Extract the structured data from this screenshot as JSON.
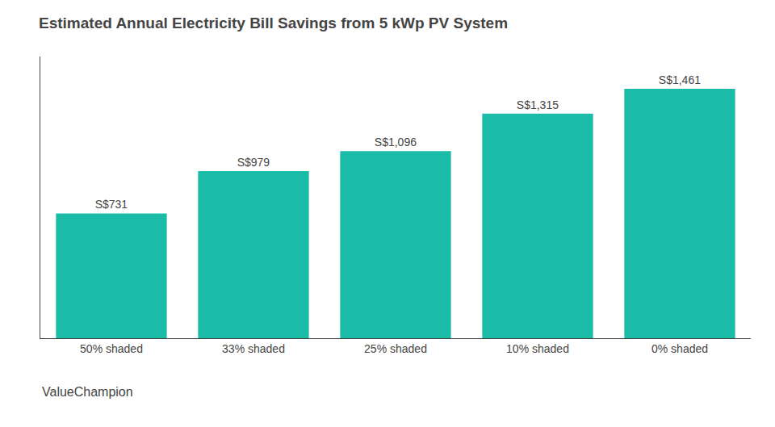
{
  "chart_data": {
    "type": "bar",
    "title": "Estimated Annual Electricity Bill Savings from 5 kWp PV System",
    "categories": [
      "50% shaded",
      "33% shaded",
      "25% shaded",
      "10% shaded",
      "0% shaded"
    ],
    "values": [
      731,
      979,
      1096,
      1315,
      1461
    ],
    "value_labels": [
      "S$731",
      "S$979",
      "S$1,096",
      "S$1,315",
      "S$1,461"
    ],
    "data_labels": true,
    "color": "#1ABCA8",
    "ylim": [
      0,
      1650
    ],
    "tick_labels": "x",
    "grid": false,
    "annotations": [
      "ValueChampion"
    ]
  }
}
